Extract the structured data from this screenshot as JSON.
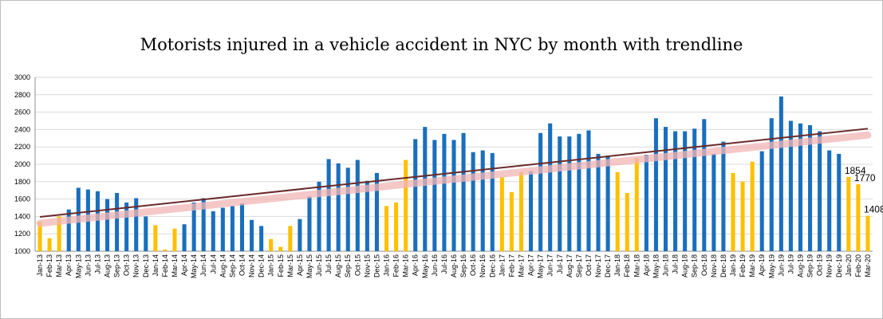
{
  "colors": {
    "blue": "#1a6fbd",
    "gold": "#ffc000",
    "trendline": "#6b2a2a",
    "trend_glow": "#f2b6b6",
    "grid": "#d9d9d9",
    "axis": "#8c8c8c"
  },
  "chart_data": {
    "type": "bar",
    "title": "Motorists injured in a vehicle accident in NYC by month with trendline",
    "xlabel": "",
    "ylabel": "",
    "ylim": [
      1000,
      3000
    ],
    "yticks": [
      "1000",
      "1200",
      "1400",
      "1600",
      "1800",
      "2000",
      "2200",
      "2400",
      "2600",
      "2800",
      "3000"
    ],
    "grid": true,
    "legend": "none",
    "categories": [
      "Jan-13",
      "Feb-13",
      "Mar-13",
      "Apr-13",
      "May-13",
      "Jun-13",
      "Jul-13",
      "Aug-13",
      "Sep-13",
      "Oct-13",
      "Nov-13",
      "Dec-13",
      "Jan-14",
      "Feb-14",
      "Mar-14",
      "Apr-14",
      "May-14",
      "Jun-14",
      "Jul-14",
      "Aug-14",
      "Sep-14",
      "Oct-14",
      "Nov-14",
      "Dec-14",
      "Jan-15",
      "Feb-15",
      "Mar-15",
      "Apr-15",
      "May-15",
      "Jun-15",
      "Jul-15",
      "Aug-15",
      "Sep-15",
      "Oct-15",
      "Nov-15",
      "Dec-15",
      "Jan-16",
      "Feb-16",
      "Mar-16",
      "Apr-16",
      "May-16",
      "Jun-16",
      "Jul-16",
      "Aug-16",
      "Sep-16",
      "Oct-16",
      "Nov-16",
      "Dec-16",
      "Jan-17",
      "Feb-17",
      "Mar-17",
      "Apr-17",
      "May-17",
      "Jun-17",
      "Jul-17",
      "Aug-17",
      "Sep-17",
      "Oct-17",
      "Nov-17",
      "Dec-17",
      "Jan-18",
      "Feb-18",
      "Mar-18",
      "Apr-18",
      "May-18",
      "Jun-18",
      "Jul-18",
      "Aug-18",
      "Sep-18",
      "Oct-18",
      "Nov-18",
      "Dec-18",
      "Jan-19",
      "Feb-19",
      "Mar-19",
      "Apr-19",
      "May-19",
      "Jun-19",
      "Jul-19",
      "Aug-19",
      "Sep-19",
      "Oct-19",
      "Nov-19",
      "Dec-19",
      "Jan-20",
      "Feb-20",
      "Mar-20"
    ],
    "values": [
      1340,
      1150,
      1400,
      1480,
      1730,
      1710,
      1690,
      1600,
      1670,
      1560,
      1610,
      1400,
      1300,
      1020,
      1260,
      1310,
      1560,
      1610,
      1460,
      1500,
      1520,
      1550,
      1360,
      1290,
      1140,
      1050,
      1290,
      1370,
      1630,
      1800,
      2060,
      2010,
      1960,
      2050,
      1810,
      1900,
      1520,
      1560,
      2050,
      2290,
      2430,
      2280,
      2350,
      2280,
      2360,
      2140,
      2160,
      2130,
      1850,
      1680,
      1910,
      1920,
      2360,
      2470,
      2320,
      2320,
      2350,
      2390,
      2120,
      2100,
      1910,
      1670,
      2070,
      2110,
      2530,
      2430,
      2380,
      2380,
      2410,
      2520,
      2120,
      2260,
      1900,
      1800,
      2030,
      2150,
      2530,
      2780,
      2500,
      2470,
      2450,
      2380,
      2160,
      2120,
      1854,
      1770,
      1408
    ],
    "bar_colors": [
      "gold",
      "gold",
      "gold",
      "blue",
      "blue",
      "blue",
      "blue",
      "blue",
      "blue",
      "blue",
      "blue",
      "blue",
      "gold",
      "gold",
      "gold",
      "blue",
      "blue",
      "blue",
      "blue",
      "blue",
      "blue",
      "blue",
      "blue",
      "blue",
      "gold",
      "gold",
      "gold",
      "blue",
      "blue",
      "blue",
      "blue",
      "blue",
      "blue",
      "blue",
      "blue",
      "blue",
      "gold",
      "gold",
      "gold",
      "blue",
      "blue",
      "blue",
      "blue",
      "blue",
      "blue",
      "blue",
      "blue",
      "blue",
      "gold",
      "gold",
      "gold",
      "blue",
      "blue",
      "blue",
      "blue",
      "blue",
      "blue",
      "blue",
      "blue",
      "blue",
      "gold",
      "gold",
      "gold",
      "blue",
      "blue",
      "blue",
      "blue",
      "blue",
      "blue",
      "blue",
      "blue",
      "blue",
      "gold",
      "gold",
      "gold",
      "blue",
      "blue",
      "blue",
      "blue",
      "blue",
      "blue",
      "blue",
      "blue",
      "blue",
      "gold",
      "gold",
      "gold"
    ],
    "trendline": {
      "start": 1395,
      "end": 2410
    },
    "annotations": [
      {
        "category": "Jan-20",
        "label": "1854"
      },
      {
        "category": "Feb-20",
        "label": "1770"
      },
      {
        "category": "Mar-20",
        "label": "1408"
      }
    ]
  }
}
